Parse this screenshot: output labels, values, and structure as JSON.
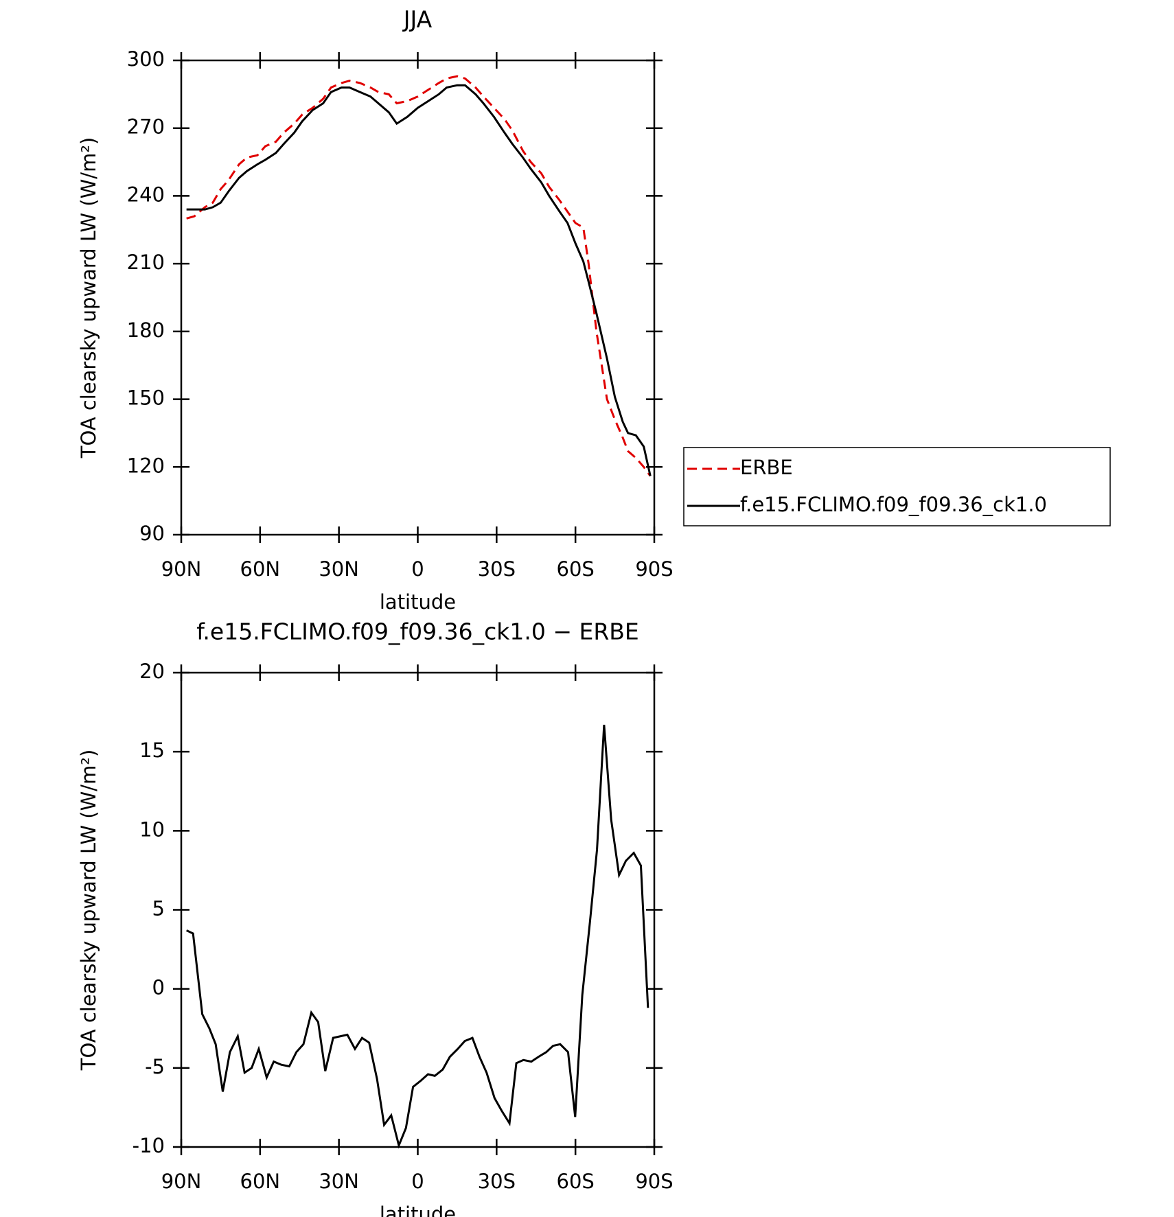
{
  "chart_data": [
    {
      "type": "line",
      "title": "JJA",
      "x_label": "latitude",
      "y_label": "TOA clearsky upward LW (W/m²)",
      "x": [
        88,
        85,
        81,
        78,
        75,
        72,
        68,
        65,
        61,
        58,
        54,
        51,
        47,
        44,
        40,
        36,
        33,
        29,
        26,
        22,
        18,
        15,
        11,
        8,
        4,
        0,
        -4,
        -8,
        -11,
        -15,
        -18,
        -22,
        -25,
        -29,
        -33,
        -36,
        -40,
        -43,
        -47,
        -50,
        -54,
        -57,
        -60,
        -63,
        -65,
        -68,
        -72,
        -75,
        -78,
        -80,
        -83,
        -86,
        -88.5
      ],
      "series": [
        {
          "name": "ERBE",
          "color": "#e00000",
          "style": "dashed",
          "values": [
            230,
            231,
            235,
            237,
            243,
            247,
            254,
            257,
            258,
            262,
            264,
            268,
            272,
            276,
            279,
            283,
            288,
            290,
            291,
            290,
            288,
            286,
            285,
            281,
            282,
            284,
            287,
            290,
            292,
            293,
            292,
            288,
            284,
            279,
            274,
            269,
            260,
            255,
            250,
            244,
            238,
            233,
            228,
            226,
            210,
            180,
            150,
            141,
            133,
            127,
            124,
            120,
            116
          ]
        },
        {
          "name": "f.e15.FCLIMO.f09_f09.36_ck1.0",
          "color": "#000000",
          "style": "solid",
          "values": [
            234,
            234,
            234,
            235,
            237,
            242,
            248,
            251,
            254,
            256,
            259,
            263,
            268,
            273,
            278,
            281,
            286,
            288,
            288,
            286,
            284,
            281,
            277,
            272,
            275,
            279,
            282,
            285,
            288,
            289,
            289,
            285,
            281,
            275,
            268,
            263,
            257,
            252,
            246,
            240,
            233,
            228,
            219,
            211,
            202,
            188,
            168,
            151,
            140,
            135,
            134,
            129,
            116
          ]
        }
      ],
      "xlim": [
        90,
        -90
      ],
      "xticks": [
        {
          "value": 90,
          "label": "90N"
        },
        {
          "value": 60,
          "label": "60N"
        },
        {
          "value": 30,
          "label": "30N"
        },
        0,
        {
          "value": -30,
          "label": "30S"
        },
        {
          "value": -60,
          "label": "60S"
        },
        {
          "value": -90,
          "label": "90S"
        }
      ],
      "ylim": [
        90,
        300
      ],
      "yticks": [
        90,
        120,
        150,
        180,
        210,
        240,
        270,
        300
      ],
      "legend": "right"
    },
    {
      "type": "line",
      "title": "f.e15.FCLIMO.f09_f09.36_ck1.0 − ERBE",
      "x_label": "latitude",
      "y_label": "TOA clearsky upward LW (W/m²)",
      "x": [
        88,
        85.5,
        82,
        79.3,
        76.9,
        74.2,
        71.5,
        68.5,
        65.9,
        63.2,
        60.5,
        57.5,
        54.8,
        51.9,
        48.9,
        46.2,
        43.5,
        40.5,
        37.9,
        35.2,
        32.2,
        29.5,
        26.8,
        23.9,
        21.2,
        18.5,
        15.5,
        12.8,
        10.1,
        7.2,
        4.5,
        1.8,
        -1.2,
        -3.9,
        -6.5,
        -9.5,
        -12.2,
        -15.2,
        -17.9,
        -20.8,
        -23.5,
        -26.2,
        -29.2,
        -31.9,
        -34.9,
        -37.5,
        -40.2,
        -43.2,
        -45.9,
        -48.9,
        -51.5,
        -54.2,
        -57.2,
        -59.9,
        -62.6,
        -65.5,
        -68.2,
        -70.9,
        -73.6,
        -76.6,
        -79.2,
        -82.2,
        -84.9,
        -87.6
      ],
      "color": "#000000",
      "values": [
        3.7,
        3.5,
        -1.6,
        -2.5,
        -3.5,
        -6.5,
        -4.0,
        -3.0,
        -5.3,
        -5.0,
        -3.8,
        -5.6,
        -4.6,
        -4.8,
        -4.9,
        -4.0,
        -3.5,
        -1.5,
        -2.1,
        -5.2,
        -3.1,
        -3.0,
        -2.9,
        -3.8,
        -3.1,
        -3.4,
        -5.7,
        -8.6,
        -8.0,
        -9.9,
        -8.8,
        -6.2,
        -5.8,
        -5.4,
        -5.5,
        -5.1,
        -4.3,
        -3.8,
        -3.3,
        -3.1,
        -4.3,
        -5.3,
        -6.9,
        -7.7,
        -8.5,
        -4.7,
        -4.5,
        -4.6,
        -4.3,
        -4.0,
        -3.6,
        -3.5,
        -4.0,
        -8.1,
        -0.4,
        4.2,
        8.8,
        16.7,
        10.7,
        7.2,
        8.1,
        8.6,
        7.8,
        -1.2
      ],
      "xlim": [
        90,
        -90
      ],
      "xticks": [
        {
          "value": 90,
          "label": "90N"
        },
        {
          "value": 60,
          "label": "60N"
        },
        {
          "value": 30,
          "label": "30N"
        },
        0,
        {
          "value": -30,
          "label": "30S"
        },
        {
          "value": -60,
          "label": "60S"
        },
        {
          "value": -90,
          "label": "90S"
        }
      ],
      "ylim": [
        -10,
        20
      ],
      "yticks": [
        -10,
        -5,
        0,
        5,
        10,
        15,
        20
      ]
    }
  ]
}
